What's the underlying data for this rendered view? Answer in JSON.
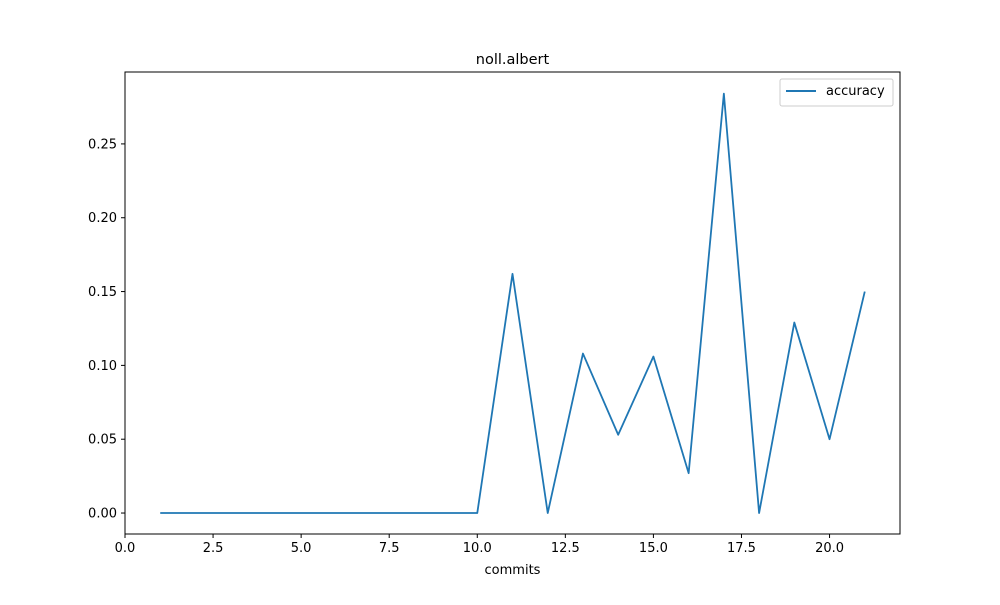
{
  "chart_data": {
    "type": "line",
    "title": "noll.albert",
    "xlabel": "commits",
    "ylabel": "",
    "xlim": [
      0,
      22
    ],
    "ylim": [
      -0.0142,
      0.2987
    ],
    "x_ticks": [
      0.0,
      2.5,
      5.0,
      7.5,
      10.0,
      12.5,
      15.0,
      17.5,
      20.0
    ],
    "x_tick_labels": [
      "0.0",
      "2.5",
      "5.0",
      "7.5",
      "10.0",
      "12.5",
      "15.0",
      "17.5",
      "20.0"
    ],
    "y_ticks": [
      0.0,
      0.05,
      0.1,
      0.15,
      0.2,
      0.25
    ],
    "y_tick_labels": [
      "0.00",
      "0.05",
      "0.10",
      "0.15",
      "0.20",
      "0.25"
    ],
    "grid": false,
    "legend_position": "top-right",
    "series": [
      {
        "name": "accuracy",
        "color": "#1f77b4",
        "x": [
          1,
          2,
          3,
          4,
          5,
          6,
          7,
          8,
          9,
          10,
          11,
          12,
          13,
          14,
          15,
          16,
          17,
          18,
          19,
          20,
          21
        ],
        "y": [
          0,
          0,
          0,
          0,
          0,
          0,
          0,
          0,
          0,
          0,
          0.162,
          0,
          0.108,
          0.053,
          0.106,
          0.027,
          0.284,
          0,
          0.129,
          0.05,
          0.15
        ]
      }
    ]
  }
}
